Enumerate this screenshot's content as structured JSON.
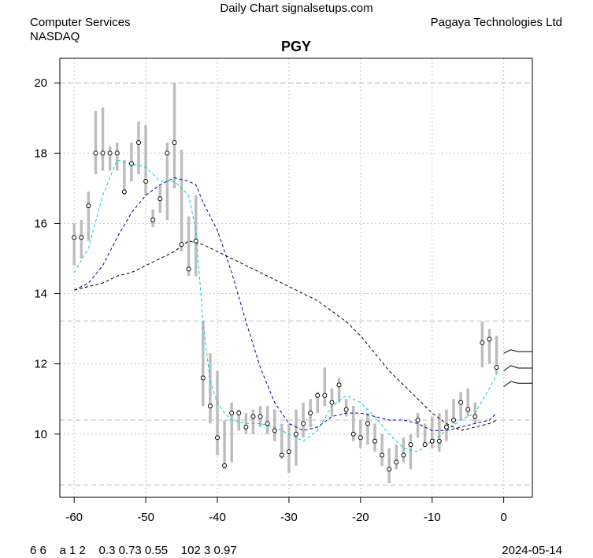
{
  "header": {
    "site_title": "Daily Chart signalsetups.com",
    "sector": "Computer Services",
    "exchange": "NASDAQ",
    "company": "Pagaya Technologies Ltd",
    "ticker": "PGY"
  },
  "footer": {
    "params": "6 6    a 1 2    0.3 0.73 0.55    102 3 0.97",
    "date": "2024-05-14"
  },
  "chart_data": {
    "type": "line",
    "title": "PGY",
    "xlim": [
      -62,
      4
    ],
    "ylim": [
      8.2,
      20.7
    ],
    "x_ticks": [
      -60,
      -50,
      -40,
      -30,
      -20,
      -10,
      0
    ],
    "y_ticks": [
      10,
      12,
      14,
      16,
      18,
      20
    ],
    "grid": true,
    "horizontal_reference_lines": [
      20.0,
      13.22,
      10.4,
      8.55
    ],
    "colors": {
      "bars": "#bdbdbd",
      "close_marker": "#000000",
      "ma_fast": "#00d0d0",
      "ma_mid": "#0000a0",
      "ma_slow": "#000000",
      "grid": "#c8c8c8"
    },
    "price_bars": {
      "x": [
        -60,
        -59,
        -58,
        -57,
        -56,
        -55,
        -54,
        -53,
        -52,
        -51,
        -50,
        -49,
        -48,
        -47,
        -46,
        -45,
        -44,
        -43,
        -42,
        -41,
        -40,
        -39,
        -38,
        -37,
        -36,
        -35,
        -34,
        -33,
        -32,
        -31,
        -30,
        -29,
        -28,
        -27,
        -26,
        -25,
        -24,
        -23,
        -22,
        -21,
        -20,
        -19,
        -18,
        -17,
        -16,
        -15,
        -14,
        -13,
        -12,
        -11,
        -10,
        -9,
        -8,
        -7,
        -6,
        -5,
        -4,
        -3,
        -2,
        -1
      ],
      "low": [
        14.8,
        15.0,
        15.5,
        17.4,
        17.5,
        17.5,
        17.5,
        16.8,
        17.2,
        17.4,
        16.8,
        15.9,
        16.3,
        16.1,
        17.0,
        15.2,
        14.5,
        14.5,
        10.8,
        10.3,
        9.4,
        9.0,
        9.2,
        10.1,
        10.0,
        10.0,
        10.2,
        10.0,
        9.8,
        9.3,
        8.9,
        9.1,
        9.9,
        10.2,
        10.6,
        10.8,
        10.5,
        10.9,
        10.5,
        9.8,
        9.6,
        9.7,
        9.5,
        9.1,
        8.6,
        9.0,
        9.2,
        9.0,
        9.9,
        9.7,
        9.6,
        9.5,
        9.8,
        10.3,
        10.4,
        10.5,
        10.3,
        11.9,
        12.0,
        11.7
      ],
      "high": [
        16.0,
        16.1,
        16.9,
        19.2,
        19.3,
        18.2,
        18.3,
        17.8,
        18.3,
        18.9,
        18.8,
        16.4,
        17.1,
        18.3,
        20.0,
        18.1,
        16.2,
        16.8,
        13.2,
        12.3,
        11.8,
        10.4,
        10.9,
        10.7,
        10.6,
        10.7,
        10.8,
        10.8,
        10.7,
        10.3,
        10.3,
        10.7,
        10.9,
        11.0,
        11.2,
        11.9,
        11.3,
        11.6,
        11.0,
        10.8,
        10.4,
        10.6,
        10.3,
        10.0,
        9.6,
        9.7,
        9.9,
        10.0,
        10.6,
        10.3,
        10.5,
        10.6,
        10.7,
        11.0,
        11.2,
        11.3,
        10.9,
        13.2,
        13.0,
        12.8
      ],
      "close": [
        15.6,
        15.6,
        16.5,
        18.0,
        18.0,
        18.0,
        18.0,
        16.9,
        17.7,
        18.3,
        17.2,
        16.1,
        16.7,
        18.0,
        18.3,
        15.4,
        14.7,
        15.5,
        11.6,
        10.8,
        9.9,
        9.1,
        10.6,
        10.6,
        10.2,
        10.5,
        10.5,
        10.3,
        10.1,
        9.4,
        9.5,
        10.0,
        10.3,
        10.6,
        11.1,
        11.1,
        10.9,
        11.4,
        10.7,
        10.0,
        9.9,
        10.3,
        9.8,
        9.4,
        9.0,
        9.2,
        9.4,
        9.7,
        10.4,
        9.7,
        9.8,
        9.8,
        10.2,
        10.4,
        10.9,
        10.7,
        10.5,
        12.6,
        12.7,
        11.9
      ]
    },
    "series": [
      {
        "key": "ma_fast",
        "x": [
          -60,
          -58,
          -56,
          -54,
          -52,
          -50,
          -48,
          -46,
          -44,
          -43,
          -42,
          -41,
          -40,
          -39,
          -38,
          -36,
          -34,
          -32,
          -30,
          -28,
          -26,
          -24,
          -22,
          -20,
          -18,
          -16,
          -14,
          -12,
          -10,
          -8,
          -6,
          -4,
          -2,
          -1
        ],
        "values": [
          14.6,
          15.3,
          16.8,
          17.8,
          17.7,
          17.6,
          17.2,
          17.2,
          16.8,
          15.8,
          13.2,
          11.5,
          10.9,
          10.6,
          10.4,
          10.3,
          10.3,
          10.2,
          10.0,
          9.8,
          10.1,
          10.8,
          11.1,
          10.9,
          10.5,
          10.0,
          9.6,
          9.5,
          9.8,
          10.1,
          10.4,
          10.6,
          11.3,
          11.7
        ]
      },
      {
        "key": "ma_mid",
        "x": [
          -60,
          -58,
          -56,
          -54,
          -52,
          -50,
          -48,
          -46,
          -44,
          -43,
          -42,
          -40,
          -38,
          -36,
          -34,
          -32,
          -30,
          -28,
          -26,
          -24,
          -22,
          -20,
          -18,
          -16,
          -14,
          -12,
          -10,
          -8,
          -6,
          -4,
          -2,
          -1
        ],
        "values": [
          14.1,
          14.3,
          14.8,
          15.6,
          16.3,
          16.8,
          17.1,
          17.3,
          17.2,
          17.1,
          16.6,
          15.8,
          14.6,
          13.2,
          11.9,
          10.9,
          10.3,
          10.1,
          10.2,
          10.5,
          10.6,
          10.6,
          10.5,
          10.4,
          10.4,
          10.3,
          10.1,
          10.1,
          10.2,
          10.3,
          10.4,
          10.6
        ]
      },
      {
        "key": "ma_slow",
        "x": [
          -60,
          -58,
          -56,
          -54,
          -52,
          -50,
          -48,
          -46,
          -44,
          -42,
          -40,
          -38,
          -36,
          -34,
          -32,
          -30,
          -28,
          -26,
          -24,
          -22,
          -20,
          -18,
          -16,
          -14,
          -12,
          -10,
          -8,
          -6,
          -4,
          -2,
          -1
        ],
        "values": [
          14.1,
          14.2,
          14.3,
          14.5,
          14.6,
          14.8,
          15.0,
          15.2,
          15.5,
          15.4,
          15.2,
          15.0,
          14.8,
          14.6,
          14.4,
          14.2,
          14.0,
          13.8,
          13.5,
          13.2,
          12.8,
          12.3,
          11.8,
          11.4,
          11.0,
          10.6,
          10.3,
          10.1,
          10.2,
          10.3,
          10.4
        ]
      }
    ],
    "projections": [
      {
        "x": [
          0,
          1,
          2,
          3,
          4
        ],
        "values": [
          12.3,
          12.4,
          12.35,
          12.35,
          12.35
        ]
      },
      {
        "x": [
          0,
          1,
          2,
          3,
          4
        ],
        "values": [
          11.8,
          11.95,
          11.88,
          11.88,
          11.88
        ]
      },
      {
        "x": [
          0,
          1,
          2,
          3,
          4
        ],
        "values": [
          11.35,
          11.5,
          11.45,
          11.45,
          11.45
        ]
      }
    ]
  }
}
